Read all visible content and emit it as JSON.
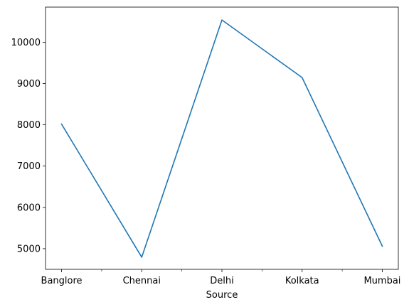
{
  "chart_data": {
    "type": "line",
    "title": "",
    "xlabel": "Source",
    "ylabel": "",
    "categories": [
      "Banglore",
      "Chennai",
      "Delhi",
      "Kolkata",
      "Mumbai"
    ],
    "series": [
      {
        "values": [
          8017,
          4794,
          10538,
          9144,
          5061
        ],
        "color": "#1f77b4"
      }
    ],
    "ylim": [
      4500,
      10850
    ],
    "y_ticks": [
      5000,
      6000,
      7000,
      8000,
      9000,
      10000
    ],
    "y_tick_labels": [
      "5000",
      "6000",
      "7000",
      "8000",
      "9000",
      "10000"
    ],
    "x_tick_labels": [
      "Banglore",
      "Chennai",
      "Delhi",
      "Kolkata",
      "Mumbai"
    ],
    "minor_x_ticks": true,
    "grid": false,
    "legend": "none"
  }
}
